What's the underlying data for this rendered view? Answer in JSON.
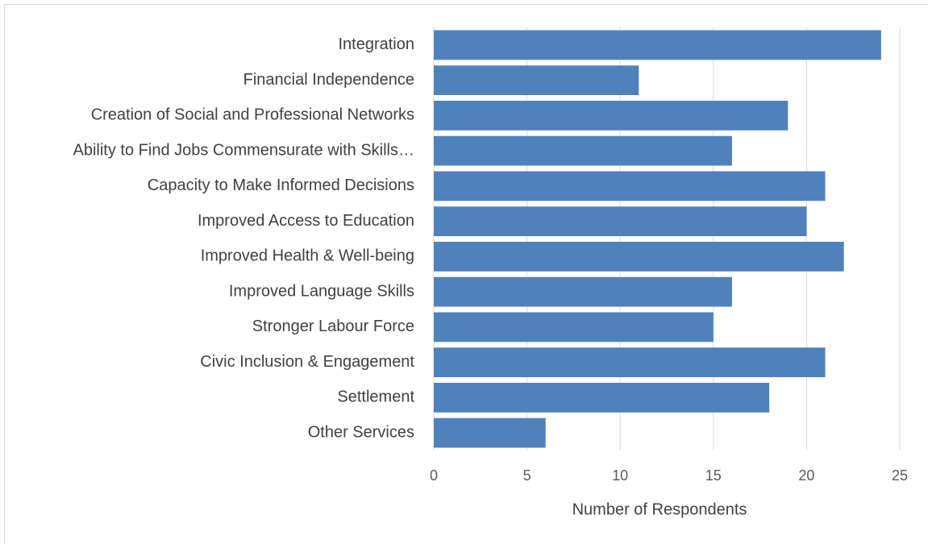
{
  "chart_data": {
    "type": "bar",
    "orientation": "horizontal",
    "x_label": "Number of Respondents",
    "categories": [
      "Integration",
      "Financial Independence",
      "Creation of Social and Professional Networks",
      "Ability to Find Jobs Commensurate with Skills…",
      "Capacity to Make Informed Decisions",
      "Improved Access to Education",
      "Improved Health & Well-being",
      "Improved Language Skills",
      "Stronger Labour Force",
      "Civic Inclusion & Engagement",
      "Settlement",
      "Other Services"
    ],
    "values": [
      24,
      11,
      19,
      16,
      21,
      20,
      22,
      16,
      15,
      21,
      18,
      6
    ],
    "color": "#4f81bd",
    "xlim": [
      0,
      25
    ],
    "xticks": [
      0,
      5,
      10,
      15,
      20,
      25
    ],
    "grid": true
  }
}
